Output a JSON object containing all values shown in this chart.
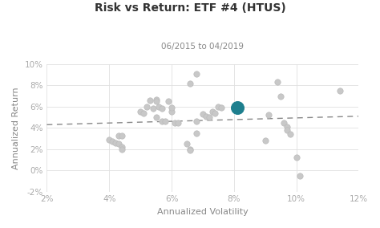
{
  "title": "Risk vs Return: ETF #4 (HTUS)",
  "subtitle": "06/2015 to 04/2019",
  "xlabel": "Annualized Volatility",
  "ylabel": "Annualized Return",
  "xlim": [
    0.02,
    0.12
  ],
  "ylim": [
    -0.02,
    0.1
  ],
  "xticks": [
    0.02,
    0.04,
    0.06,
    0.08,
    0.1,
    0.12
  ],
  "yticks": [
    -0.02,
    0.0,
    0.02,
    0.04,
    0.06,
    0.08,
    0.1
  ],
  "background_color": "#ffffff",
  "plot_bg_color": "#ffffff",
  "scatter_color": "#c8c8c8",
  "scatter_edge_color": "#bbbbbb",
  "highlight_color": "#1e7f8e",
  "highlight_edge_color": "#1e7f8e",
  "trendline_color": "#888888",
  "grid_color": "#e0e0e0",
  "title_color": "#333333",
  "subtitle_color": "#888888",
  "label_color": "#888888",
  "tick_color": "#aaaaaa",
  "scatter_points": [
    [
      0.04,
      0.029
    ],
    [
      0.041,
      0.027
    ],
    [
      0.042,
      0.026
    ],
    [
      0.043,
      0.033
    ],
    [
      0.043,
      0.025
    ],
    [
      0.044,
      0.033
    ],
    [
      0.044,
      0.022
    ],
    [
      0.044,
      0.02
    ],
    [
      0.05,
      0.055
    ],
    [
      0.051,
      0.054
    ],
    [
      0.052,
      0.06
    ],
    [
      0.053,
      0.066
    ],
    [
      0.054,
      0.058
    ],
    [
      0.055,
      0.067
    ],
    [
      0.055,
      0.065
    ],
    [
      0.055,
      0.05
    ],
    [
      0.056,
      0.06
    ],
    [
      0.057,
      0.058
    ],
    [
      0.057,
      0.046
    ],
    [
      0.058,
      0.046
    ],
    [
      0.059,
      0.065
    ],
    [
      0.06,
      0.055
    ],
    [
      0.06,
      0.059
    ],
    [
      0.061,
      0.045
    ],
    [
      0.062,
      0.045
    ],
    [
      0.065,
      0.025
    ],
    [
      0.066,
      0.02
    ],
    [
      0.066,
      0.019
    ],
    [
      0.068,
      0.035
    ],
    [
      0.068,
      0.046
    ],
    [
      0.07,
      0.053
    ],
    [
      0.071,
      0.051
    ],
    [
      0.072,
      0.05
    ],
    [
      0.073,
      0.055
    ],
    [
      0.074,
      0.054
    ],
    [
      0.066,
      0.082
    ],
    [
      0.068,
      0.091
    ],
    [
      0.075,
      0.06
    ],
    [
      0.076,
      0.059
    ],
    [
      0.09,
      0.028
    ],
    [
      0.091,
      0.052
    ],
    [
      0.094,
      0.083
    ],
    [
      0.095,
      0.07
    ],
    [
      0.096,
      0.045
    ],
    [
      0.097,
      0.041
    ],
    [
      0.097,
      0.038
    ],
    [
      0.098,
      0.034
    ],
    [
      0.1,
      0.012
    ],
    [
      0.101,
      -0.005
    ],
    [
      0.114,
      0.075
    ]
  ],
  "highlight_point": [
    0.081,
    0.059
  ],
  "trendline_x": [
    0.02,
    0.12
  ],
  "trendline_y": [
    0.043,
    0.051
  ],
  "scatter_size": 28,
  "highlight_size": 130,
  "title_fontsize": 10,
  "subtitle_fontsize": 7.5,
  "label_fontsize": 8,
  "tick_fontsize": 7.5
}
